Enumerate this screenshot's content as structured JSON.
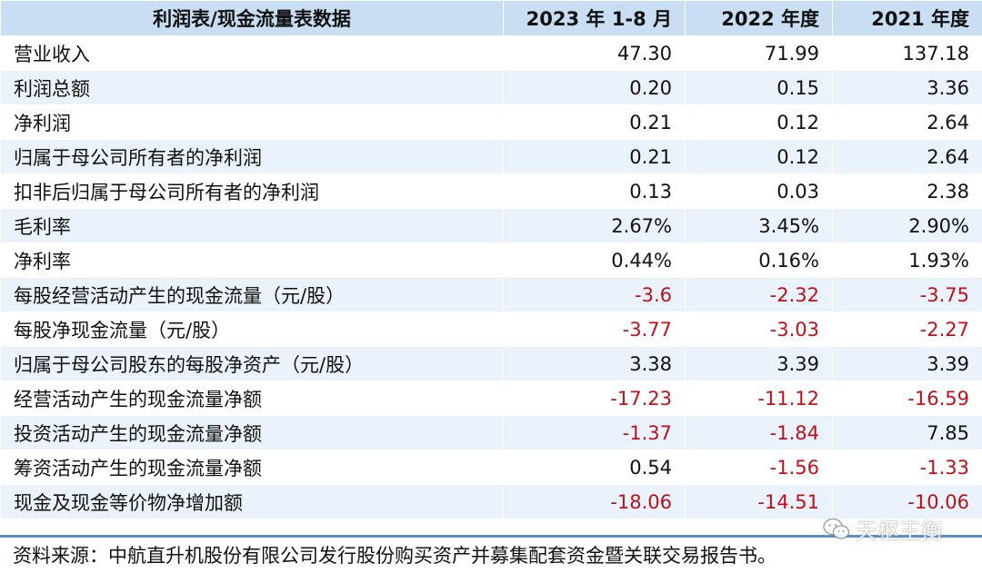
{
  "table": {
    "headers": [
      "利润表/现金流量表数据",
      "2023 年 1-8 月",
      "2022 年度",
      "2021 年度"
    ],
    "rows": [
      {
        "label": "营业收入",
        "values": [
          "47.30",
          "71.99",
          "137.18"
        ]
      },
      {
        "label": "利润总额",
        "values": [
          "0.20",
          "0.15",
          "3.36"
        ]
      },
      {
        "label": "净利润",
        "values": [
          "0.21",
          "0.12",
          "2.64"
        ]
      },
      {
        "label": "归属于母公司所有者的净利润",
        "values": [
          "0.21",
          "0.12",
          "2.64"
        ]
      },
      {
        "label": "扣非后归属于母公司所有者的净利润",
        "values": [
          "0.13",
          "0.03",
          "2.38"
        ]
      },
      {
        "label": "毛利率",
        "values": [
          "2.67%",
          "3.45%",
          "2.90%"
        ]
      },
      {
        "label": "净利率",
        "values": [
          "0.44%",
          "0.16%",
          "1.93%"
        ]
      },
      {
        "label": "每股经营活动产生的现金流量（元/股）",
        "values": [
          "-3.6",
          "-2.32",
          "-3.75"
        ]
      },
      {
        "label": "每股净现金流量（元/股）",
        "values": [
          "-3.77",
          "-3.03",
          "-2.27"
        ]
      },
      {
        "label": "归属于母公司股东的每股净资产（元/股）",
        "values": [
          "3.38",
          "3.39",
          "3.39"
        ]
      },
      {
        "label": "经营活动产生的现金流量净额",
        "values": [
          "-17.23",
          "-11.12",
          "-16.59"
        ]
      },
      {
        "label": "投资活动产生的现金流量净额",
        "values": [
          "-1.37",
          "-1.84",
          "7.85"
        ]
      },
      {
        "label": "筹资活动产生的现金流量净额",
        "values": [
          "0.54",
          "-1.56",
          "-1.33"
        ]
      },
      {
        "label": "现金及现金等价物净增加额",
        "values": [
          "-18.06",
          "-14.51",
          "-10.06"
        ]
      }
    ]
  },
  "source_note": "资料来源：中航直升机股份有限公司发行股份购买资产并募集配套资金暨关联交易报告书。",
  "watermark": {
    "text": "天枢王衡",
    "icon": "wechat-icon"
  },
  "colors": {
    "header_bg": "#c9def2",
    "stripe_bg": "#eaf2fb",
    "negative": "#c0101a",
    "rule": "#5b8fc7"
  }
}
